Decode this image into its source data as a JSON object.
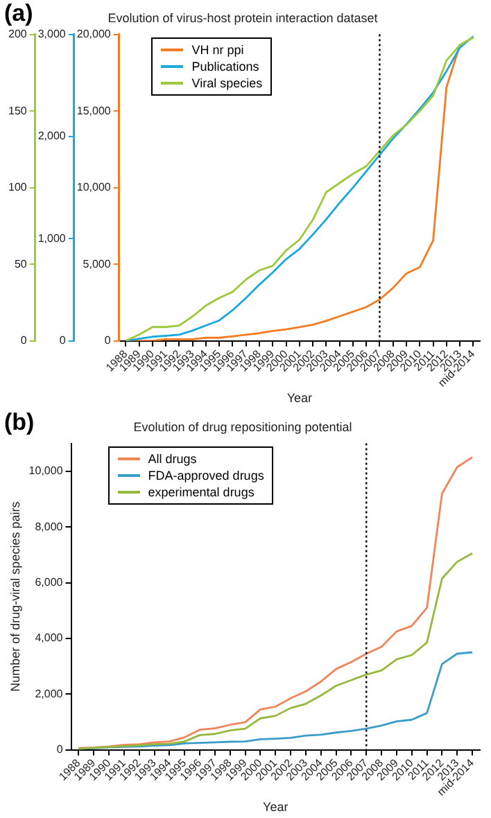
{
  "chart_data": [
    {
      "type": "line",
      "title": "Evolution of virus-host protein interaction dataset",
      "xlabel": "Year",
      "annotations": [
        "(a)"
      ],
      "categories": [
        "1988",
        "1989",
        "1990",
        "1991",
        "1992",
        "1993",
        "1994",
        "1995",
        "1996",
        "1997",
        "1998",
        "1999",
        "2000",
        "2001",
        "2002",
        "2003",
        "2004",
        "2005",
        "2006",
        "2007",
        "2008",
        "2009",
        "2010",
        "2011",
        "2012",
        "2013",
        "mid-2014"
      ],
      "series": [
        {
          "name": "VH nr ppi",
          "color": "#f47b20",
          "values": [
            0,
            0,
            0,
            100,
            100,
            100,
            200,
            200,
            300,
            400,
            500,
            650,
            750,
            900,
            1050,
            1300,
            1600,
            1900,
            2200,
            2700,
            3450,
            4400,
            4800,
            6550,
            16550,
            19300,
            19800
          ]
        },
        {
          "name": "Publications",
          "color": "#1aa7e0",
          "axis": "y2",
          "values": [
            0,
            20,
            40,
            50,
            60,
            100,
            150,
            200,
            300,
            420,
            550,
            670,
            800,
            900,
            1040,
            1190,
            1350,
            1500,
            1660,
            1820,
            1980,
            2120,
            2270,
            2430,
            2640,
            2870,
            2980
          ]
        },
        {
          "name": "Viral species",
          "color": "#9dc83a",
          "axis": "y3",
          "values": [
            0,
            4,
            9,
            9,
            10,
            16,
            23,
            28,
            32,
            40,
            46,
            49,
            59,
            66,
            79,
            97,
            103,
            109,
            114,
            124,
            134,
            141,
            150,
            160,
            183,
            193,
            198
          ]
        }
      ],
      "ylim": [
        0,
        20000
      ],
      "yticks": [
        0,
        {
          "value": 5000,
          "label": "5,000"
        },
        {
          "value": 10000,
          "label": "10,000"
        },
        {
          "value": 15000,
          "label": "15,000"
        },
        {
          "value": 20000,
          "label": "20,000"
        }
      ],
      "y2lim": [
        0,
        3000
      ],
      "y2ticks": [
        0,
        {
          "value": 1000,
          "label": "1,000"
        },
        {
          "value": 2000,
          "label": "2,000"
        },
        {
          "value": 3000,
          "label": "3,000"
        }
      ],
      "y3lim": [
        0,
        200
      ],
      "y3ticks": [
        0,
        50,
        100,
        150,
        200
      ],
      "ref_lines": [
        {
          "axis": "x",
          "value": "2007",
          "color": "#000000",
          "line_style": "dotted"
        }
      ],
      "legend": "top left",
      "grid": false,
      "marker": "none",
      "line_style": "solid"
    },
    {
      "type": "line",
      "title": "Evolution of drug repositioning potential",
      "xlabel": "Year",
      "ylabel": "Number of drug-viral species pairs",
      "annotations": [
        "(b)"
      ],
      "categories": [
        "1988",
        "1989",
        "1990",
        "1991",
        "1992",
        "1993",
        "1994",
        "1995",
        "1996",
        "1997",
        "1998",
        "1999",
        "2000",
        "2001",
        "2002",
        "2003",
        "2004",
        "2005",
        "2006",
        "2007",
        "2008",
        "2009",
        "2010",
        "2011",
        "2012",
        "2013",
        "mid-2014"
      ],
      "series": [
        {
          "name": "All drugs",
          "color": "#f2845a",
          "values": [
            60,
            80,
            120,
            180,
            200,
            270,
            300,
            450,
            720,
            770,
            900,
            990,
            1450,
            1550,
            1850,
            2100,
            2450,
            2900,
            3150,
            3450,
            3700,
            4250,
            4450,
            5100,
            9200,
            10150,
            10500
          ]
        },
        {
          "name": "FDA-approved drugs",
          "color": "#3a9cc8",
          "values": [
            40,
            60,
            90,
            110,
            120,
            150,
            170,
            230,
            250,
            270,
            290,
            300,
            380,
            400,
            430,
            510,
            540,
            620,
            680,
            760,
            870,
            1020,
            1080,
            1320,
            3080,
            3450,
            3500
          ]
        },
        {
          "name": "experimental drugs",
          "color": "#96b83c",
          "values": [
            40,
            70,
            100,
            140,
            160,
            200,
            220,
            300,
            530,
            570,
            700,
            760,
            1130,
            1220,
            1500,
            1650,
            1950,
            2300,
            2500,
            2700,
            2850,
            3250,
            3400,
            3850,
            6150,
            6750,
            7050
          ]
        }
      ],
      "ylim": [
        0,
        11000
      ],
      "yticks": [
        0,
        {
          "value": 2000,
          "label": "2,000"
        },
        {
          "value": 4000,
          "label": "4,000"
        },
        {
          "value": 6000,
          "label": "6,000"
        },
        {
          "value": 8000,
          "label": "8,000"
        },
        {
          "value": 10000,
          "label": "10,000"
        }
      ],
      "ref_lines": [
        {
          "axis": "x",
          "value": "2007",
          "color": "#000000",
          "line_style": "dotted"
        }
      ],
      "legend": "top left",
      "grid": false,
      "marker": "none",
      "line_style": "solid"
    }
  ]
}
